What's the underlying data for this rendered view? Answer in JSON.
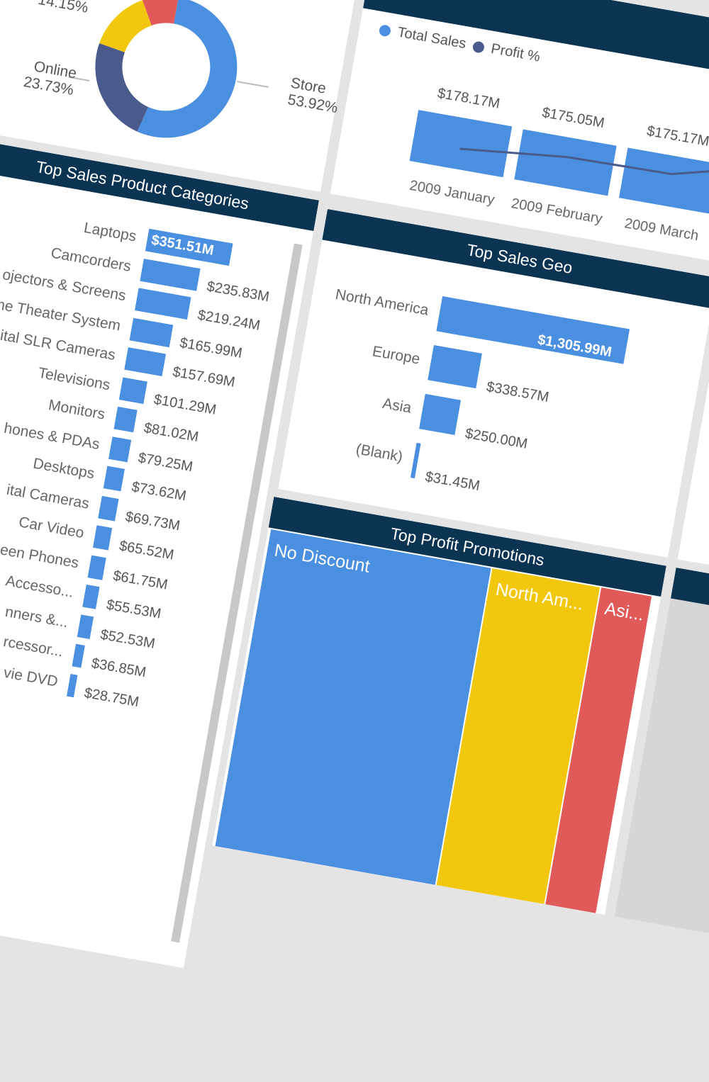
{
  "colors": {
    "header": "#0b3352",
    "blue": "#4a8fe0",
    "navy": "#4a5a8c",
    "yellow": "#f2c80f",
    "red": "#e05a5a",
    "background": "#e4e4e4"
  },
  "donut": {
    "chart_data": {
      "type": "pie",
      "style": "donut",
      "slices": [
        {
          "name": "Store",
          "value": 53.92,
          "label": "53.92%",
          "color": "#4a8fe0"
        },
        {
          "name": "Online",
          "value": 23.73,
          "label": "23.73%",
          "color": "#4a5a8c"
        },
        {
          "name": "",
          "value": 14.15,
          "label": "14.15%",
          "color": "#f2c80f"
        },
        {
          "name": "",
          "value": 8.2,
          "label": "",
          "color": "#e05a5a"
        }
      ]
    }
  },
  "trend": {
    "legend": [
      {
        "label": "Total Sales",
        "color": "#4a8fe0"
      },
      {
        "label": "Profit %",
        "color": "#4a5a8c"
      }
    ],
    "chart_data": {
      "type": "bar+line",
      "categories": [
        "2009 January",
        "2009 February",
        "2009 March"
      ],
      "series": [
        {
          "name": "Total Sales",
          "values": [
            178.17,
            175.05,
            175.17
          ],
          "labels": [
            "$178.17M",
            "$175.05M",
            "$175.17M"
          ]
        },
        {
          "name": "Profit %",
          "values": [
            71,
            107,
            112
          ]
        }
      ]
    }
  },
  "categories": {
    "title": "Top Sales Product Categories",
    "chart_data": {
      "type": "bar",
      "orientation": "horizontal",
      "categories": [
        "Laptops",
        "Camcorders",
        "ojectors & Screens",
        "me Theater System",
        "ital SLR Cameras",
        "Televisions",
        "Monitors",
        "hones & PDAs",
        "Desktops",
        "ital Cameras",
        "Car Video",
        "een Phones",
        "Accesso...",
        "nners &...",
        "rcessor...",
        "vie DVD"
      ],
      "values": [
        351.51,
        235.83,
        219.24,
        165.99,
        157.69,
        101.29,
        81.02,
        79.25,
        73.62,
        69.73,
        65.52,
        61.75,
        55.53,
        52.53,
        36.85,
        28.75
      ],
      "labels": [
        "$351.51M",
        "$235.83M",
        "$219.24M",
        "$165.99M",
        "$157.69M",
        "$101.29M",
        "$81.02M",
        "$79.25M",
        "$73.62M",
        "$69.73M",
        "$65.52M",
        "$61.75M",
        "$55.53M",
        "$52.53M",
        "$36.85M",
        "$28.75M"
      ]
    }
  },
  "geo": {
    "title": "Top Sales Geo",
    "chart_data": {
      "type": "bar",
      "orientation": "horizontal",
      "categories": [
        "North America",
        "Europe",
        "Asia",
        "(Blank)"
      ],
      "values": [
        1305.99,
        338.57,
        250.0,
        31.45
      ],
      "labels": [
        "$1,305.99M",
        "$338.57M",
        "$250.00M",
        "$31.45M"
      ]
    }
  },
  "promotions": {
    "title": "Top Profit Promotions",
    "items": [
      {
        "label": "No Discount",
        "color": "#4a8fe0"
      },
      {
        "label": "North Am...",
        "color": "#f2c80f"
      },
      {
        "label": "Asi...",
        "color": "#e05a5a"
      }
    ]
  }
}
